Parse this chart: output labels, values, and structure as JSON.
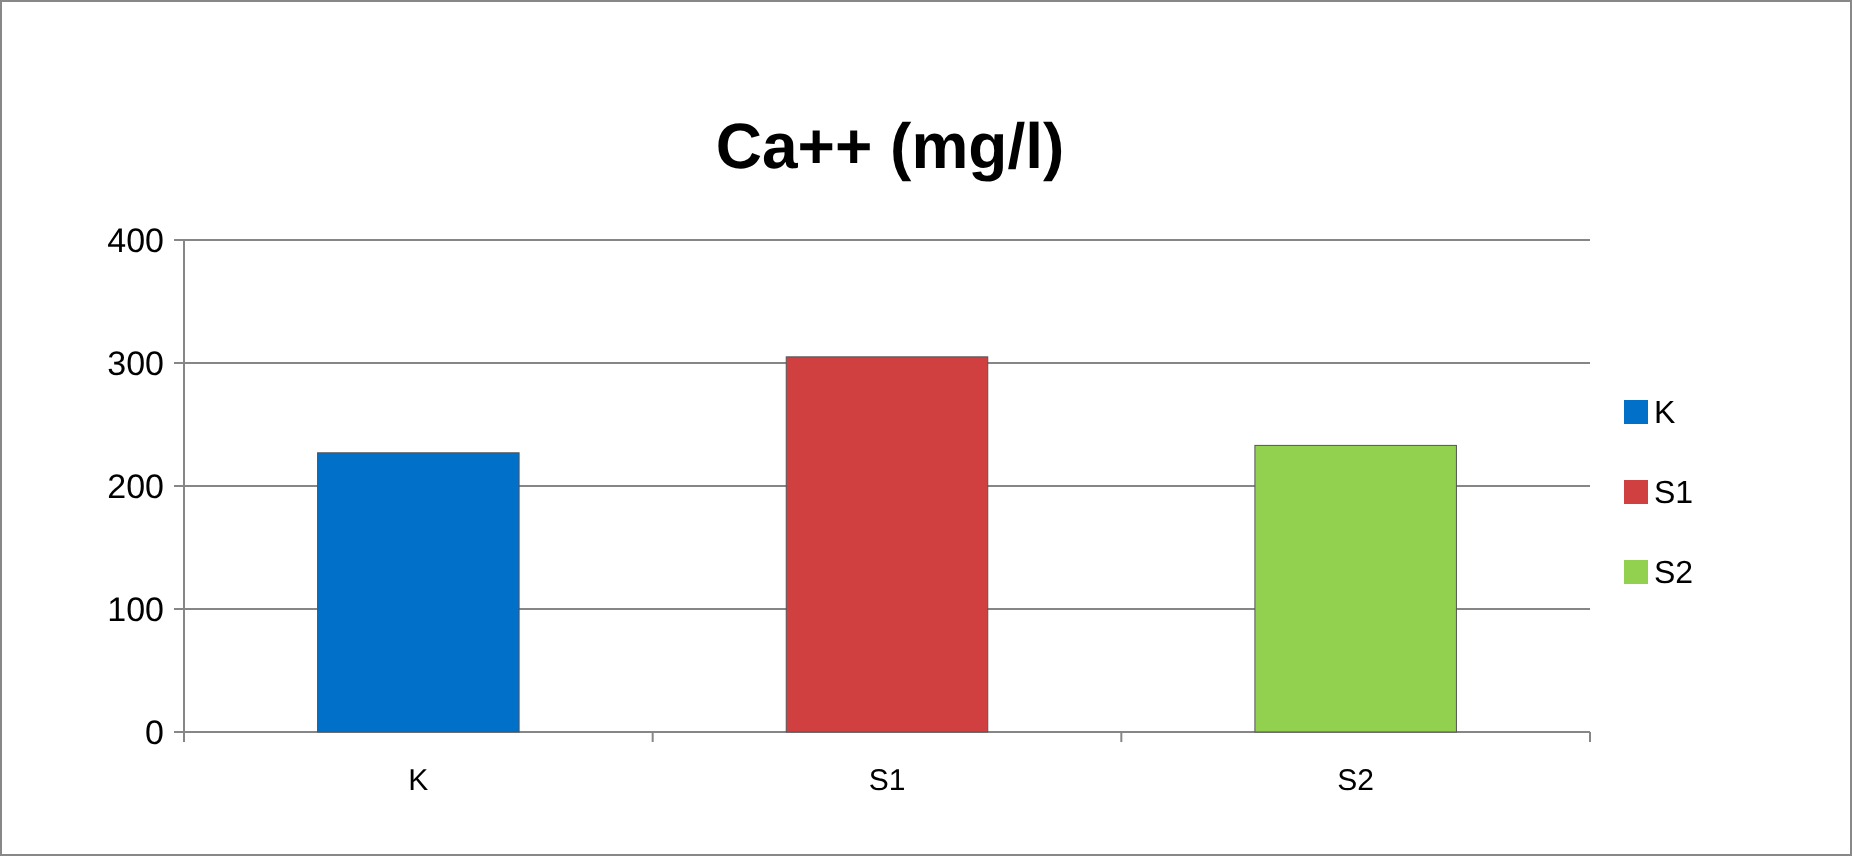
{
  "chart_data": {
    "type": "bar",
    "title": "Ca++ (mg/l)",
    "categories": [
      "K",
      "S1",
      "S2"
    ],
    "series": [
      {
        "name": "K",
        "color": "#0070c8",
        "values": [
          227,
          null,
          null
        ]
      },
      {
        "name": "S1",
        "color": "#d04040",
        "values": [
          null,
          305,
          null
        ]
      },
      {
        "name": "S2",
        "color": "#92d050",
        "values": [
          null,
          null,
          233
        ]
      }
    ],
    "ylim": [
      0,
      400
    ],
    "yticks": [
      0,
      100,
      200,
      300,
      400
    ],
    "grid": "y",
    "legend": "right"
  }
}
